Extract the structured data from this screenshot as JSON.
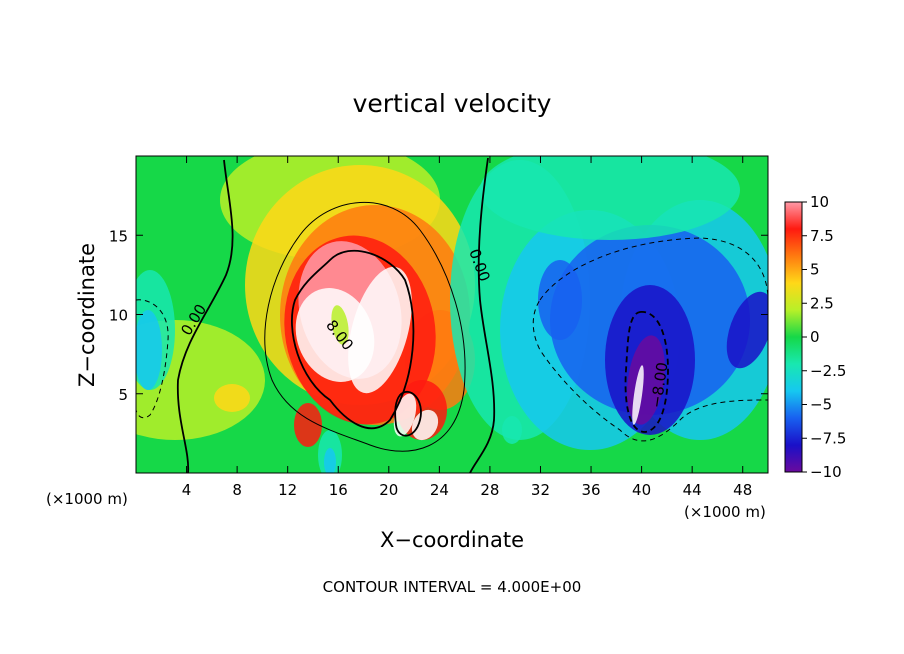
{
  "chart_data": {
    "type": "heatmap",
    "title": "vertical velocity",
    "xlabel": "X−coordinate",
    "ylabel": "Z−coordinate",
    "x_unit_label_left": "(×1000 m)",
    "x_unit_label_right": "(×1000 m)",
    "footer": "CONTOUR INTERVAL = 4.000E+00",
    "xlim": [
      0,
      50
    ],
    "ylim": [
      0,
      20
    ],
    "x_ticks": [
      4,
      8,
      12,
      16,
      20,
      24,
      28,
      32,
      36,
      40,
      44,
      48
    ],
    "x_tick_labels": [
      "4",
      "8",
      "12",
      "16",
      "20",
      "24",
      "28",
      "32",
      "36",
      "40",
      "44",
      "48"
    ],
    "y_ticks": [
      5,
      10,
      15
    ],
    "y_tick_labels": [
      "5",
      "10",
      "15"
    ],
    "colorbar": {
      "range": [
        -10,
        10
      ],
      "ticks": [
        10,
        7.5,
        5,
        2.5,
        0,
        -2.5,
        -5,
        -7.5,
        -10
      ],
      "tick_labels": [
        "10",
        "7.5",
        "5",
        "2.5",
        "0",
        "−2.5",
        "−5",
        "−7.5",
        "−10"
      ],
      "colors_low_to_high": [
        "#6a0a9e",
        "#1a10c8",
        "#1860f0",
        "#16c8f0",
        "#18e8b0",
        "#16d848",
        "#b8f028",
        "#ffd818",
        "#ff7a10",
        "#ff1a10",
        "#ff9aa8"
      ]
    },
    "contour_labels": [
      {
        "text": "0.00",
        "x": 4.9,
        "z": 9.5,
        "angle": -58
      },
      {
        "text": "0.00",
        "x": 26.8,
        "z": 13.0,
        "angle": 70
      },
      {
        "text": "8.00",
        "x": 15.8,
        "z": 8.5,
        "angle": 52
      },
      {
        "text": "−8.00",
        "x": 41.8,
        "z": 5.5,
        "angle": -82
      }
    ],
    "features": [
      {
        "name": "main updraft",
        "x": 17,
        "z": 8.5,
        "value": 10
      },
      {
        "name": "secondary updraft",
        "x": 22,
        "z": 4.5,
        "value": 8
      },
      {
        "name": "downdraft core",
        "x": 40,
        "z": 5.5,
        "value": -10
      },
      {
        "name": "right downdraft",
        "x": 48,
        "z": 9,
        "value": -7
      },
      {
        "name": "left weak downdraft",
        "x": 1,
        "z": 8,
        "value": -6
      }
    ]
  }
}
